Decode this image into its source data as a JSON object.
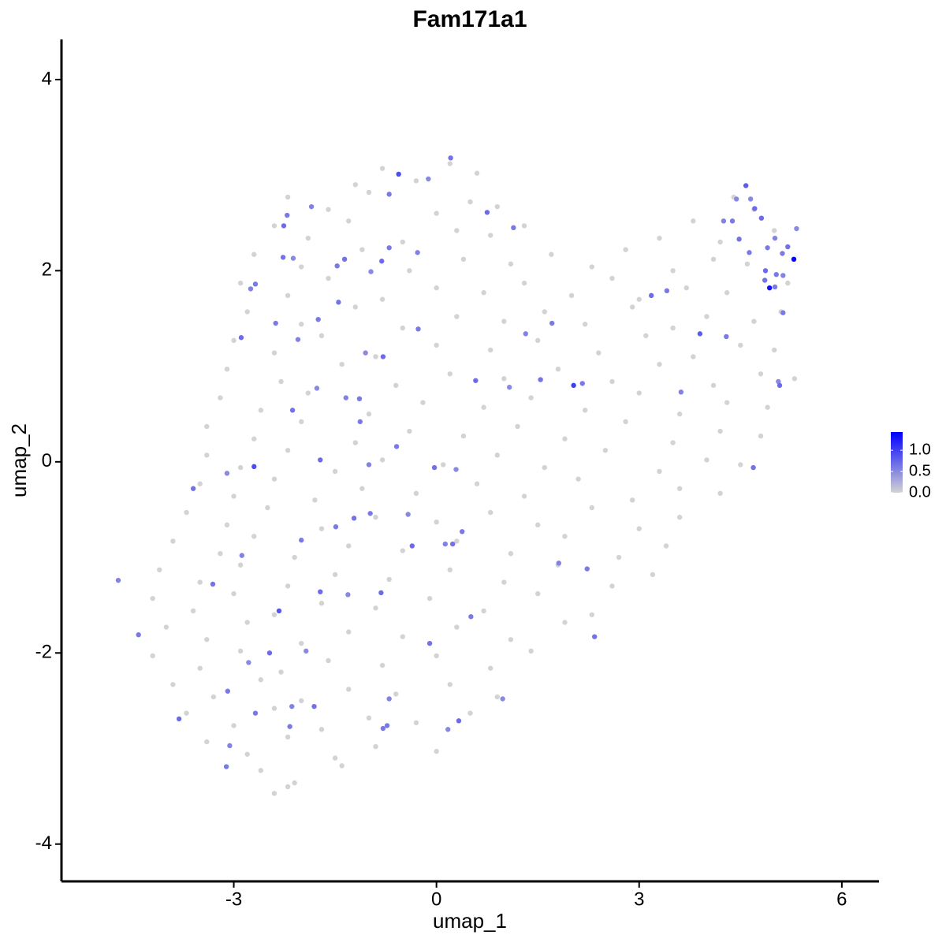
{
  "chart_data": {
    "type": "scatter",
    "title": "Fam171a1",
    "x_label": "umap_1",
    "y_label": "umap_2",
    "xlim": [
      -5.55,
      6.55
    ],
    "xticks": [
      -3,
      0,
      3,
      6
    ],
    "ylim": [
      -4.39,
      4.42
    ],
    "yticks": [
      -4,
      -2,
      0,
      2,
      4
    ],
    "color_low": "#d3d3d3",
    "color_high": "#0000ff",
    "colorbar": {
      "lim": [
        0,
        1.43
      ],
      "ticks": [
        {
          "value": 0,
          "label": "0.0"
        },
        {
          "value": 0.5,
          "label": "0.5"
        },
        {
          "value": 1,
          "label": "1.0"
        }
      ]
    },
    "x": [
      -0.8,
      -0.3,
      0.2,
      -1.2,
      0.6,
      -2.2,
      -1.6,
      -1.0,
      0.0,
      0.5,
      0.9,
      4.4,
      4.7,
      -2.4,
      -1.9,
      -1.3,
      -0.5,
      0.3,
      0.8,
      1.3,
      3.3,
      3.8,
      4.2,
      5.0,
      -2.7,
      -2.0,
      -1.1,
      -0.4,
      0.4,
      1.1,
      1.7,
      2.3,
      2.8,
      3.5,
      4.1,
      4.6,
      -2.9,
      -2.2,
      -1.6,
      -0.8,
      0.0,
      0.7,
      1.3,
      2.0,
      2.6,
      3.0,
      3.7,
      4.3,
      5.2,
      -2.8,
      -2.0,
      -1.2,
      -0.5,
      0.3,
      1.0,
      1.6,
      2.2,
      2.9,
      3.5,
      4.0,
      4.7,
      5.1,
      -3.0,
      -2.4,
      -1.7,
      -0.9,
      0.0,
      0.8,
      1.5,
      2.4,
      3.1,
      3.8,
      4.5,
      5.0,
      -3.1,
      -2.3,
      -1.4,
      -0.6,
      0.2,
      1.0,
      1.8,
      2.6,
      3.3,
      4.1,
      4.8,
      5.3,
      -3.2,
      -2.6,
      -1.9,
      -1.0,
      -0.2,
      0.7,
      1.4,
      2.2,
      3.0,
      3.6,
      4.3,
      4.9,
      -3.4,
      -2.7,
      -2.0,
      -1.2,
      -0.4,
      0.4,
      1.2,
      1.9,
      2.8,
      3.5,
      4.2,
      4.8,
      -3.4,
      -2.9,
      -2.2,
      -1.5,
      -0.8,
      0.1,
      0.9,
      1.6,
      2.5,
      3.3,
      4.0,
      4.5,
      -3.5,
      -3.0,
      -2.4,
      -1.8,
      -1.1,
      -0.3,
      0.6,
      1.3,
      2.1,
      2.9,
      3.6,
      4.2,
      -3.7,
      -3.1,
      -2.5,
      -1.7,
      -0.9,
      0.0,
      0.8,
      1.5,
      2.3,
      3.0,
      3.6,
      -3.9,
      -3.2,
      -2.7,
      -2.1,
      -1.3,
      -0.5,
      0.3,
      1.1,
      1.9,
      2.7,
      3.4,
      -4.1,
      -3.5,
      -2.9,
      -2.2,
      -1.5,
      -0.7,
      0.2,
      1.0,
      1.8,
      2.6,
      3.2,
      -4.2,
      -3.6,
      -3.0,
      -2.4,
      -1.7,
      -0.9,
      -0.1,
      0.7,
      1.5,
      2.3,
      -4.0,
      -3.4,
      -2.8,
      -2.0,
      -1.3,
      -0.5,
      0.3,
      1.1,
      1.9,
      -4.2,
      -3.5,
      -2.9,
      -2.3,
      -1.6,
      -0.8,
      0.0,
      0.8,
      1.4,
      -3.9,
      -3.3,
      -2.6,
      -2.0,
      -1.3,
      -0.6,
      0.2,
      0.9,
      -3.7,
      -3.0,
      -2.4,
      -1.7,
      -1.0,
      -0.3,
      0.5,
      -3.4,
      -2.8,
      -2.2,
      -1.5,
      -0.9,
      0.0,
      -2.6,
      -2.1,
      -1.4,
      -2.4,
      -2.2,
      5.29,
      4.93,
      -0.56,
      -2.7,
      2.03,
      -2.33,
      4.58,
      3.9,
      -4.71,
      -4.41,
      -3.6,
      -3.1,
      -3.81,
      -3.11,
      -3.06,
      -3.09,
      -3.31,
      -2.78,
      -2.47,
      -2.17,
      -2.14,
      -2.68,
      -1.81,
      -1.93,
      -1.72,
      -2.0,
      -2.88,
      -1.49,
      -1.22,
      -1.31,
      -0.82,
      -0.73,
      -0.7,
      -0.79,
      -0.1,
      0.17,
      0.33,
      0.51,
      0.13,
      0.38,
      0.24,
      -0.42,
      -0.36,
      -0.98,
      -1.0,
      -0.59,
      -0.03,
      0.29,
      -1.72,
      -1.13,
      -1.34,
      -1.14,
      -2.13,
      -1.77,
      -2.89,
      -2.38,
      -2.05,
      -1.75,
      -1.45,
      -1.05,
      -0.79,
      -0.27,
      -2.75,
      -2.68,
      -2.27,
      -2.12,
      -2.26,
      -2.21,
      -1.85,
      -1.47,
      -1.36,
      -0.97,
      -0.81,
      -0.7,
      -0.28,
      -0.7,
      0.21,
      -0.12,
      0.75,
      1.14,
      1.32,
      1.71,
      1.54,
      1.08,
      0.58,
      2.16,
      1.81,
      2.23,
      2.34,
      0.98,
      3.18,
      3.41,
      3.62,
      4.29,
      4.69,
      5.06,
      5.08,
      5.13,
      4.25,
      4.38,
      4.48,
      4.65,
      4.81,
      4.9,
      5.01,
      5.12,
      5.2,
      5.33,
      4.87,
      5.03,
      5.13,
      5.01,
      4.86,
      4.44,
      4.71,
      4.63
    ],
    "y": [
      3.07,
      2.94,
      3.12,
      2.9,
      3.02,
      2.77,
      2.64,
      2.82,
      2.6,
      2.72,
      2.67,
      2.77,
      2.64,
      2.47,
      2.34,
      2.52,
      2.3,
      2.42,
      2.37,
      2.47,
      2.34,
      2.52,
      2.3,
      2.42,
      2.17,
      2.04,
      2.22,
      2.0,
      2.12,
      2.07,
      2.17,
      2.04,
      2.22,
      2.0,
      2.12,
      2.07,
      1.87,
      1.74,
      1.92,
      1.7,
      1.82,
      1.77,
      1.87,
      1.74,
      1.92,
      1.7,
      1.82,
      1.77,
      1.87,
      1.57,
      1.44,
      1.62,
      1.4,
      1.52,
      1.47,
      1.57,
      1.44,
      1.62,
      1.4,
      1.52,
      1.47,
      1.57,
      1.27,
      1.14,
      1.32,
      1.1,
      1.22,
      1.17,
      1.27,
      1.14,
      1.32,
      1.1,
      1.22,
      1.17,
      0.97,
      0.84,
      1.02,
      0.8,
      0.92,
      0.87,
      0.97,
      0.84,
      1.02,
      0.8,
      0.92,
      0.87,
      0.67,
      0.54,
      0.72,
      0.5,
      0.62,
      0.57,
      0.67,
      0.54,
      0.72,
      0.5,
      0.62,
      0.57,
      0.37,
      0.24,
      0.42,
      0.2,
      0.32,
      0.27,
      0.37,
      0.24,
      0.42,
      0.2,
      0.32,
      0.27,
      0.07,
      -0.06,
      0.12,
      -0.1,
      0.02,
      -0.03,
      0.07,
      -0.06,
      0.12,
      -0.1,
      0.02,
      -0.03,
      -0.23,
      -0.36,
      -0.18,
      -0.4,
      -0.28,
      -0.33,
      -0.23,
      -0.36,
      -0.18,
      -0.4,
      -0.28,
      -0.33,
      -0.53,
      -0.66,
      -0.48,
      -0.7,
      -0.58,
      -0.63,
      -0.53,
      -0.66,
      -0.48,
      -0.7,
      -0.58,
      -0.83,
      -0.96,
      -0.78,
      -1.0,
      -0.88,
      -0.93,
      -0.83,
      -0.96,
      -0.78,
      -1.0,
      -0.88,
      -1.13,
      -1.26,
      -1.08,
      -1.3,
      -1.18,
      -1.23,
      -1.13,
      -1.26,
      -1.08,
      -1.3,
      -1.18,
      -1.43,
      -1.56,
      -1.38,
      -1.6,
      -1.48,
      -1.53,
      -1.43,
      -1.56,
      -1.38,
      -1.6,
      -1.73,
      -1.86,
      -1.68,
      -1.9,
      -1.78,
      -1.83,
      -1.73,
      -1.86,
      -1.68,
      -2.03,
      -2.16,
      -1.98,
      -2.2,
      -2.08,
      -2.13,
      -2.03,
      -2.16,
      -1.98,
      -2.33,
      -2.46,
      -2.28,
      -2.5,
      -2.38,
      -2.43,
      -2.33,
      -2.46,
      -2.63,
      -2.76,
      -2.58,
      -2.8,
      -2.68,
      -2.73,
      -2.63,
      -2.93,
      -3.06,
      -2.88,
      -3.1,
      -2.98,
      -3.03,
      -3.23,
      -3.36,
      -3.18,
      -3.47,
      -3.4,
      2.12,
      1.82,
      3.01,
      -0.05,
      0.8,
      -1.56,
      2.89,
      1.34,
      -1.24,
      -1.81,
      -0.28,
      -0.12,
      -2.69,
      -3.19,
      -2.97,
      -2.4,
      -1.28,
      -2.1,
      -2.0,
      -2.77,
      -2.56,
      -2.63,
      -2.56,
      -1.98,
      -1.36,
      -0.82,
      -0.98,
      -0.68,
      -0.59,
      -1.39,
      -1.37,
      -2.76,
      -2.48,
      -2.79,
      -1.9,
      -2.8,
      -2.71,
      -1.62,
      -0.86,
      -0.73,
      -0.86,
      -0.55,
      -0.88,
      -0.54,
      -0.03,
      0.16,
      -0.06,
      -0.08,
      0.02,
      0.42,
      0.67,
      0.66,
      0.54,
      0.77,
      1.3,
      1.45,
      1.28,
      1.49,
      1.67,
      1.14,
      1.1,
      1.39,
      1.81,
      1.86,
      2.14,
      2.13,
      2.47,
      2.58,
      2.67,
      2.05,
      2.12,
      1.99,
      2.1,
      2.24,
      2.19,
      2.8,
      3.18,
      2.96,
      2.61,
      2.45,
      1.34,
      1.45,
      0.86,
      0.78,
      0.85,
      0.82,
      -1.06,
      -1.12,
      -1.83,
      -2.48,
      1.74,
      1.79,
      0.73,
      1.31,
      -0.06,
      0.84,
      0.8,
      1.56,
      2.52,
      2.52,
      2.33,
      2.75,
      2.55,
      2.24,
      2.34,
      2.18,
      2.25,
      2.44,
      2.0,
      1.96,
      1.95,
      1.83,
      1.9,
      2.75,
      2.65,
      2.19
    ],
    "expression": [
      0,
      0,
      0,
      0,
      0,
      0,
      0,
      0,
      0,
      0,
      0,
      0,
      0,
      0,
      0,
      0,
      0,
      0,
      0,
      0,
      0,
      0,
      0,
      0,
      0,
      0,
      0,
      0,
      0,
      0,
      0,
      0,
      0,
      0,
      0,
      0,
      0,
      0,
      0,
      0,
      0,
      0,
      0,
      0,
      0,
      0,
      0,
      0,
      0,
      0,
      0,
      0,
      0,
      0,
      0,
      0,
      0,
      0,
      0,
      0,
      0,
      0,
      0,
      0,
      0,
      0,
      0,
      0,
      0,
      0,
      0,
      0,
      0,
      0,
      0,
      0,
      0,
      0,
      0,
      0,
      0,
      0,
      0,
      0,
      0,
      0,
      0,
      0,
      0,
      0,
      0,
      0,
      0,
      0,
      0,
      0,
      0,
      0,
      0,
      0,
      0,
      0,
      0,
      0,
      0,
      0,
      0,
      0,
      0,
      0,
      0,
      0,
      0,
      0,
      0,
      0,
      0,
      0,
      0,
      0,
      0,
      0,
      0,
      0,
      0,
      0,
      0,
      0,
      0,
      0,
      0,
      0,
      0,
      0,
      0,
      0,
      0,
      0,
      0,
      0,
      0,
      0,
      0,
      0,
      0,
      0,
      0,
      0,
      0,
      0,
      0,
      0,
      0,
      0,
      0,
      0,
      0,
      0,
      0,
      0,
      0,
      0,
      0,
      0,
      0,
      0,
      0,
      0,
      0,
      0,
      0,
      0,
      0,
      0,
      0,
      0,
      0,
      0,
      0,
      0,
      0,
      0,
      0,
      0,
      0,
      0,
      0,
      0,
      0,
      0,
      0,
      0,
      0,
      0,
      0,
      0,
      0,
      0,
      0,
      0,
      0,
      0,
      0,
      0,
      0,
      0,
      0,
      0,
      0,
      0,
      0,
      0,
      0,
      0,
      0,
      0,
      0,
      0,
      0,
      0,
      0,
      1.4,
      1.3,
      0.9,
      0.9,
      1.0,
      0.85,
      0.8,
      0.8,
      0.55,
      0.6,
      0.65,
      0.5,
      0.7,
      0.6,
      0.55,
      0.6,
      0.65,
      0.5,
      0.7,
      0.6,
      0.55,
      0.6,
      0.65,
      0.5,
      0.7,
      0.6,
      0.55,
      0.6,
      0.65,
      0.5,
      0.7,
      0.6,
      0.55,
      0.6,
      0.65,
      0.5,
      0.7,
      0.6,
      0.55,
      0.6,
      0.65,
      0.5,
      0.7,
      0.6,
      0.55,
      0.6,
      0.65,
      0.5,
      0.7,
      0.6,
      0.55,
      0.6,
      0.65,
      0.5,
      0.7,
      0.6,
      0.55,
      0.6,
      0.65,
      0.5,
      0.7,
      0.6,
      0.55,
      0.6,
      0.65,
      0.5,
      0.7,
      0.6,
      0.55,
      0.6,
      0.65,
      0.5,
      0.7,
      0.6,
      0.55,
      0.6,
      0.65,
      0.5,
      0.7,
      0.6,
      0.55,
      0.6,
      0.65,
      0.5,
      0.7,
      0.6,
      0.55,
      0.6,
      0.65,
      0.5,
      0.7,
      0.6,
      0.55,
      0.6,
      0.65,
      0.5,
      0.7,
      0.6,
      0.55,
      0.6,
      0.65,
      0.5,
      0.7,
      0.6,
      0.55,
      0.6,
      0.65,
      0.5,
      0.7,
      0.6,
      0.55,
      0.6,
      0.65,
      0.5,
      0.7,
      0.6
    ]
  }
}
